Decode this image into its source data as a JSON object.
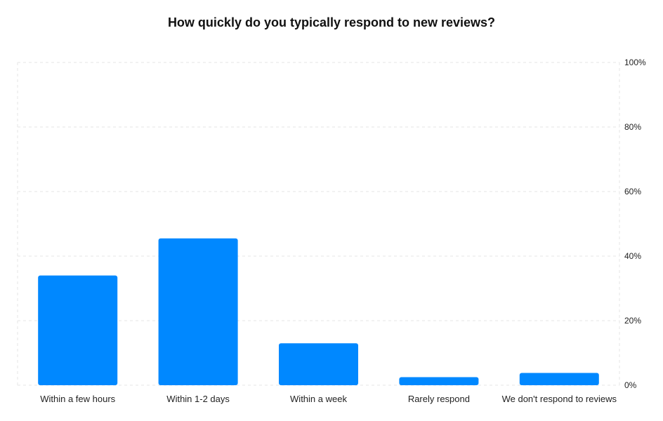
{
  "chart_data": {
    "type": "bar",
    "title": "How quickly do you typically respond to new reviews?",
    "xlabel": "",
    "ylabel": "",
    "categories": [
      "Within a few hours",
      "Within 1-2 days",
      "Within a week",
      "Rarely respond",
      "We don't respond to reviews"
    ],
    "values": [
      34,
      45.5,
      13,
      2.5,
      3.8
    ],
    "ylim": [
      0,
      100
    ],
    "yticks": [
      "0%",
      "20%",
      "40%",
      "60%",
      "80%",
      "100%"
    ],
    "ytick_values": [
      0,
      20,
      40,
      60,
      80,
      100
    ],
    "y_axis_position": "right",
    "grid": true,
    "legend": "none",
    "bar_color": "#0088FF",
    "grid_color": "#e6e6e6"
  }
}
